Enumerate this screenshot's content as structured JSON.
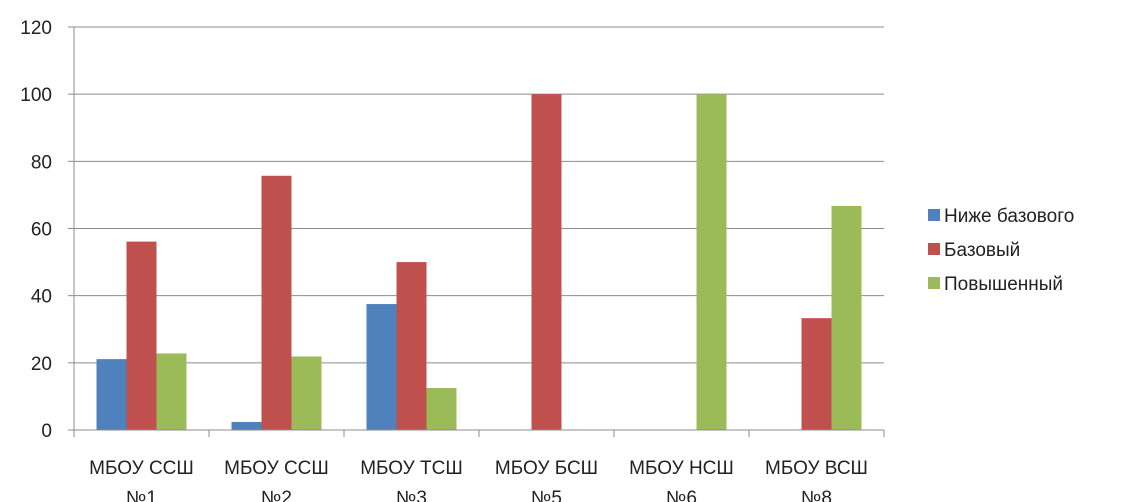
{
  "chart_data": {
    "type": "bar",
    "categories": [
      [
        "МБОУ ССШ",
        "№1"
      ],
      [
        "МБОУ ССШ",
        "№2"
      ],
      [
        "МБОУ ТСШ",
        "№3"
      ],
      [
        "МБОУ БСШ",
        "№5"
      ],
      [
        "МБОУ НСШ",
        "№6"
      ],
      [
        "МБОУ ВСШ",
        "№8"
      ]
    ],
    "series": [
      {
        "name": "Ниже базового",
        "color": "#4F81BD",
        "values": [
          21.1,
          2.4,
          37.5,
          0,
          0,
          0
        ]
      },
      {
        "name": "Базовый",
        "color": "#C0504D",
        "values": [
          56.1,
          75.7,
          50,
          100,
          0,
          33.3
        ]
      },
      {
        "name": "Повышенный",
        "color": "#9BBB59",
        "values": [
          22.8,
          21.9,
          12.5,
          0,
          100,
          66.7
        ]
      }
    ],
    "ylim": [
      0,
      120
    ],
    "yticks": [
      0,
      20,
      40,
      60,
      80,
      100,
      120
    ],
    "grid": true,
    "legend_position": "right"
  }
}
